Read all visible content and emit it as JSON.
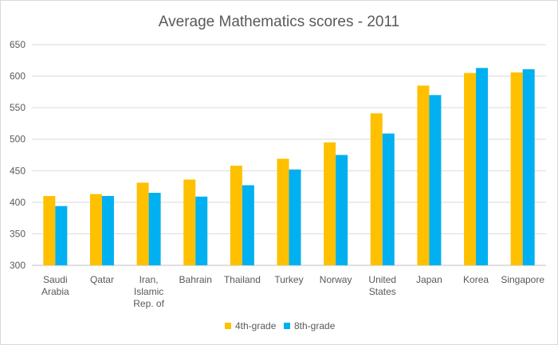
{
  "chart_data": {
    "type": "bar",
    "title": "Average Mathematics scores - 2011",
    "xlabel": "",
    "ylabel": "",
    "ylim": [
      300,
      650
    ],
    "yticks": [
      300,
      350,
      400,
      450,
      500,
      550,
      600,
      650
    ],
    "grid": true,
    "legend_position": "bottom",
    "categories": [
      [
        "Saudi",
        "Arabia"
      ],
      [
        "Qatar"
      ],
      [
        "Iran,",
        "Islamic",
        "Rep. of"
      ],
      [
        "Bahrain"
      ],
      [
        "Thailand"
      ],
      [
        "Turkey"
      ],
      [
        "Norway"
      ],
      [
        "United",
        "States"
      ],
      [
        "Japan"
      ],
      [
        "Korea"
      ],
      [
        "Singapore"
      ]
    ],
    "series": [
      {
        "name": "4th-grade",
        "color": "#FFC000",
        "values": [
          410,
          413,
          431,
          436,
          458,
          469,
          495,
          541,
          585,
          605,
          606
        ]
      },
      {
        "name": "8th-grade",
        "color": "#00B0F0",
        "values": [
          394,
          410,
          415,
          409,
          427,
          452,
          475,
          509,
          570,
          613,
          611
        ]
      }
    ]
  }
}
